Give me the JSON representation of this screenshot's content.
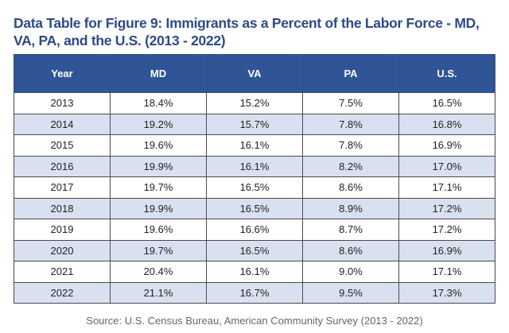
{
  "title": "Data Table for Figure 9: Immigrants as a Percent of the Labor Force - MD, VA, PA, and the U.S. (2013 - 2022)",
  "table": {
    "headers": [
      "Year",
      "MD",
      "VA",
      "PA",
      "U.S."
    ],
    "rows": [
      [
        "2013",
        "18.4%",
        "15.2%",
        "7.5%",
        "16.5%"
      ],
      [
        "2014",
        "19.2%",
        "15.7%",
        "7.8%",
        "16.8%"
      ],
      [
        "2015",
        "19.6%",
        "16.1%",
        "7.8%",
        "16.9%"
      ],
      [
        "2016",
        "19.9%",
        "16.1%",
        "8.2%",
        "17.0%"
      ],
      [
        "2017",
        "19.7%",
        "16.5%",
        "8.6%",
        "17.1%"
      ],
      [
        "2018",
        "19.9%",
        "16.5%",
        "8.9%",
        "17.2%"
      ],
      [
        "2019",
        "19.6%",
        "16.6%",
        "8.7%",
        "17.2%"
      ],
      [
        "2020",
        "19.7%",
        "16.5%",
        "8.6%",
        "16.9%"
      ],
      [
        "2021",
        "20.4%",
        "16.1%",
        "9.0%",
        "17.1%"
      ],
      [
        "2022",
        "21.1%",
        "16.7%",
        "9.5%",
        "17.3%"
      ]
    ]
  },
  "source": "Source: U.S. Census Bureau, American Community Survey (2013 - 2022)",
  "colors": {
    "header_bg": "#2f5597",
    "title": "#2e4a86",
    "alt_row": "#d9e1f1"
  }
}
